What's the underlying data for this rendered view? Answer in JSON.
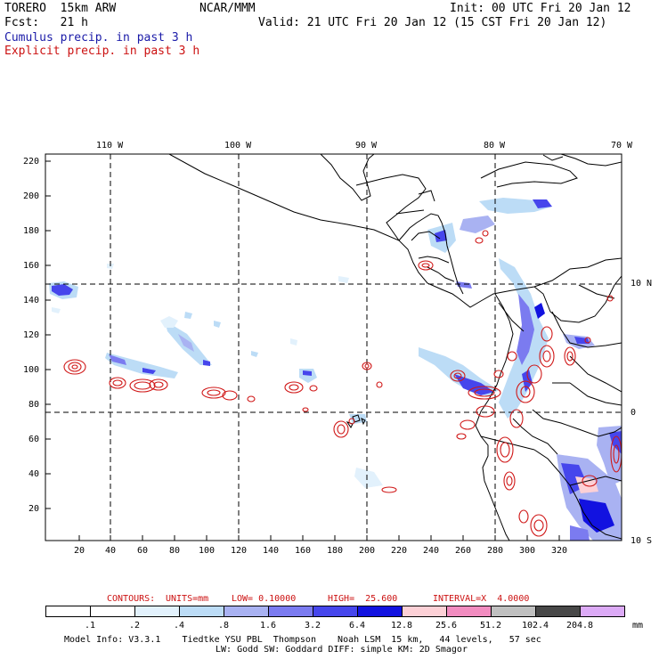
{
  "header": {
    "model": "TORERO  15km ARW",
    "org": "NCAR/MMM",
    "init": "Init: 00 UTC Fri 20 Jan 12",
    "fcst": "Fcst:   21 h",
    "valid": "Valid: 21 UTC Fri 20 Jan 12 (15 CST Fri 20 Jan 12)",
    "field1": "Cumulus precip. in past 3 h",
    "field2": "Explicit precip. in past 3 h"
  },
  "map": {
    "lon_labels": [
      "110 W",
      "100 W",
      "90 W",
      "80 W",
      "70 W"
    ],
    "lat_labels": [
      "10 N",
      "0",
      "10 S"
    ],
    "y_ticks": [
      "220",
      "200",
      "180",
      "160",
      "140",
      "120",
      "100",
      "80",
      "60",
      "40",
      "20"
    ],
    "x_ticks": [
      "20",
      "40",
      "60",
      "80",
      "100",
      "120",
      "140",
      "160",
      "180",
      "200",
      "220",
      "240",
      "260",
      "280",
      "300",
      "320"
    ]
  },
  "contour_info": {
    "label": "CONTOURS:",
    "units": "UNITS=mm",
    "low": "LOW= 0.10000",
    "high": "HIGH=  25.600",
    "interval": "INTERVAL=X  4.0000"
  },
  "colorbar": {
    "labels": [
      ".1",
      ".2",
      ".4",
      ".8",
      "1.6",
      "3.2",
      "6.4",
      "12.8",
      "25.6",
      "51.2",
      "102.4",
      "204.8"
    ],
    "unit": "mm",
    "colors": [
      "#ffffff",
      "#ffffff",
      "#e2f1fc",
      "#bcdcf6",
      "#a9b2f2",
      "#7b7bf0",
      "#4646ec",
      "#1212e0",
      "#fcd0d6",
      "#f28cc0",
      "#c0c0c0",
      "#484848",
      "#dcaaf6"
    ]
  },
  "footer": {
    "line1": "Model Info: V3.3.1    Tiedtke YSU PBL  Thompson    Noah LSM  15 km,   44 levels,   57 sec",
    "line2": "LW: Godd SW: Goddard DIFF: simple KM: 2D Smagor"
  }
}
